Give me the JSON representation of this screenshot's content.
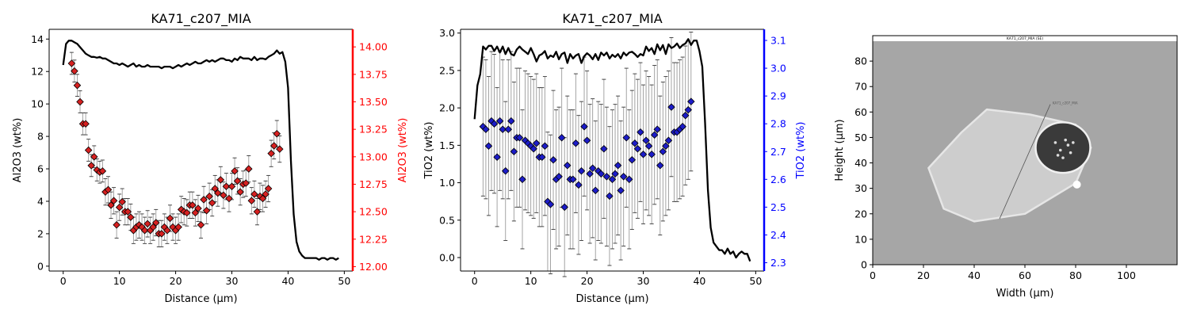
{
  "chart_data": [
    {
      "type": "scatter",
      "title": "KA71_c207_MIA",
      "xlabel": "Distance (µm)",
      "ylabel": "Al2O3 (wt%)",
      "y2label": "Al2O3 (wt%)",
      "xlim": [
        -2.5,
        51.5
      ],
      "ylim": [
        -0.3,
        14.6
      ],
      "y2lim": [
        11.96,
        14.16
      ],
      "xticks": [
        "0",
        "10",
        "20",
        "30",
        "40",
        "50"
      ],
      "yticks": [
        "0",
        "2",
        "4",
        "6",
        "8",
        "10",
        "12",
        "14"
      ],
      "y2ticks": [
        "12.00",
        "12.25",
        "12.50",
        "12.75",
        "13.00",
        "13.25",
        "13.50",
        "13.75",
        "14.00"
      ],
      "line_color": "#000000",
      "marker_color": "#d62020",
      "right_axis_color": "#ff0000",
      "line": {
        "name": "",
        "x": [
          0,
          0.5,
          1,
          1.5,
          2,
          2.5,
          3,
          3.5,
          4,
          4.5,
          5,
          5.5,
          6,
          6.5,
          7,
          7.5,
          8,
          8.5,
          9,
          9.5,
          10,
          10.5,
          11,
          11.5,
          12,
          12.5,
          13,
          13.5,
          14,
          14.5,
          15,
          15.5,
          16,
          16.5,
          17,
          17.5,
          18,
          18.5,
          19,
          19.5,
          20,
          20.5,
          21,
          21.5,
          22,
          22.5,
          23,
          23.5,
          24,
          24.5,
          25,
          25.5,
          26,
          26.5,
          27,
          27.5,
          28,
          28.5,
          29,
          29.5,
          30,
          30.5,
          31,
          31.5,
          32,
          32.5,
          33,
          33.5,
          34,
          34.5,
          35,
          35.5,
          36,
          36.5,
          37,
          37.5,
          38,
          38.5,
          39,
          39.5,
          40,
          40.5,
          41,
          41.5,
          42,
          42.5,
          43,
          43.5,
          44,
          44.5,
          45,
          45.5,
          46,
          46.5,
          47,
          47.5,
          48,
          48.5,
          49
        ],
        "y": [
          12.4,
          13.7,
          13.9,
          13.9,
          13.8,
          13.7,
          13.5,
          13.3,
          13.1,
          13.0,
          12.9,
          12.9,
          12.85,
          12.9,
          12.8,
          12.8,
          12.7,
          12.6,
          12.5,
          12.5,
          12.4,
          12.5,
          12.4,
          12.3,
          12.4,
          12.5,
          12.3,
          12.4,
          12.3,
          12.3,
          12.4,
          12.3,
          12.3,
          12.3,
          12.3,
          12.2,
          12.3,
          12.3,
          12.3,
          12.2,
          12.3,
          12.4,
          12.3,
          12.4,
          12.5,
          12.4,
          12.5,
          12.6,
          12.5,
          12.5,
          12.6,
          12.7,
          12.6,
          12.7,
          12.6,
          12.7,
          12.8,
          12.8,
          12.7,
          12.7,
          12.6,
          12.8,
          12.7,
          12.9,
          12.8,
          12.8,
          12.8,
          12.7,
          12.9,
          12.7,
          12.8,
          12.8,
          12.75,
          12.9,
          13.0,
          13.1,
          13.3,
          13.1,
          13.2,
          12.6,
          11.0,
          6.5,
          3.2,
          1.5,
          0.9,
          0.65,
          0.5,
          0.5,
          0.5,
          0.5,
          0.5,
          0.4,
          0.5,
          0.5,
          0.4,
          0.5,
          0.5,
          0.4,
          0.5
        ]
      },
      "points": {
        "x": [
          1.5,
          2,
          2.5,
          3,
          3.5,
          4,
          4.5,
          5,
          5.5,
          6,
          6.5,
          7,
          7.5,
          8,
          8.5,
          9,
          9.5,
          10,
          10.5,
          11,
          11.5,
          12,
          12.5,
          13,
          13.5,
          14,
          14.5,
          15,
          15.5,
          16,
          16.5,
          17,
          17.5,
          18,
          18.5,
          19,
          19.5,
          20,
          20.5,
          21,
          21.5,
          22,
          22.5,
          23,
          23.5,
          24,
          24.5,
          25,
          25.5,
          26,
          26.5,
          27,
          27.5,
          28,
          28.5,
          29,
          29.5,
          30,
          30.5,
          31,
          31.5,
          32,
          32.5,
          33,
          33.5,
          34,
          34.5,
          35,
          35.5,
          36,
          36.5,
          37,
          37.5,
          38,
          38.5
        ],
        "y": [
          13.85,
          13.78,
          13.65,
          13.5,
          13.3,
          13.3,
          13.06,
          12.92,
          13.0,
          12.88,
          12.86,
          12.87,
          12.68,
          12.7,
          12.56,
          12.6,
          12.38,
          12.54,
          12.59,
          12.5,
          12.5,
          12.45,
          12.33,
          12.36,
          12.38,
          12.36,
          12.33,
          12.39,
          12.33,
          12.36,
          12.4,
          12.3,
          12.3,
          12.36,
          12.33,
          12.44,
          12.36,
          12.33,
          12.36,
          12.52,
          12.5,
          12.49,
          12.56,
          12.56,
          12.49,
          12.53,
          12.38,
          12.61,
          12.51,
          12.64,
          12.58,
          12.71,
          12.67,
          12.79,
          12.65,
          12.73,
          12.62,
          12.73,
          12.87,
          12.78,
          12.68,
          12.75,
          12.76,
          12.89,
          12.6,
          12.66,
          12.5,
          12.64,
          12.62,
          12.66,
          12.71,
          13.03,
          13.1,
          13.21,
          13.07
        ],
        "err": [
          0.1,
          0.1,
          0.1,
          0.1,
          0.1,
          0.1,
          0.1,
          0.1,
          0.1,
          0.1,
          0.1,
          0.1,
          0.12,
          0.12,
          0.12,
          0.12,
          0.12,
          0.12,
          0.12,
          0.12,
          0.12,
          0.12,
          0.12,
          0.12,
          0.12,
          0.12,
          0.12,
          0.12,
          0.12,
          0.12,
          0.12,
          0.12,
          0.12,
          0.12,
          0.12,
          0.12,
          0.12,
          0.12,
          0.12,
          0.12,
          0.12,
          0.12,
          0.12,
          0.12,
          0.12,
          0.12,
          0.12,
          0.12,
          0.12,
          0.12,
          0.12,
          0.12,
          0.12,
          0.12,
          0.12,
          0.12,
          0.12,
          0.12,
          0.12,
          0.12,
          0.12,
          0.12,
          0.12,
          0.12,
          0.12,
          0.12,
          0.12,
          0.12,
          0.12,
          0.12,
          0.12,
          0.12,
          0.12,
          0.12,
          0.12
        ]
      }
    },
    {
      "type": "scatter",
      "title": "KA71_c207_MIA",
      "xlabel": "Distance (µm)",
      "ylabel": "TiO2 (wt%)",
      "y2label": "TiO2 (wt%)",
      "xlim": [
        -2.5,
        51.5
      ],
      "ylim": [
        -0.18,
        3.05
      ],
      "y2lim": [
        2.27,
        3.14
      ],
      "xticks": [
        "0",
        "10",
        "20",
        "30",
        "40",
        "50"
      ],
      "yticks": [
        "0.0",
        "0.5",
        "1.0",
        "1.5",
        "2.0",
        "2.5",
        "3.0"
      ],
      "y2ticks": [
        "2.3",
        "2.4",
        "2.5",
        "2.6",
        "2.7",
        "2.8",
        "2.9",
        "3.0",
        "3.1"
      ],
      "line_color": "#000000",
      "marker_color": "#1c1cc8",
      "right_axis_color": "#0000ff",
      "line": {
        "name": "",
        "x": [
          0,
          0.5,
          1,
          1.5,
          2,
          2.5,
          3,
          3.5,
          4,
          4.5,
          5,
          5.5,
          6,
          6.5,
          7,
          7.5,
          8,
          8.5,
          9,
          9.5,
          10,
          10.5,
          11,
          11.5,
          12,
          12.5,
          13,
          13.5,
          14,
          14.5,
          15,
          15.5,
          16,
          16.5,
          17,
          17.5,
          18,
          18.5,
          19,
          19.5,
          20,
          20.5,
          21,
          21.5,
          22,
          22.5,
          23,
          23.5,
          24,
          24.5,
          25,
          25.5,
          26,
          26.5,
          27,
          27.5,
          28,
          28.5,
          29,
          29.5,
          30,
          30.5,
          31,
          31.5,
          32,
          32.5,
          33,
          33.5,
          34,
          34.5,
          35,
          35.5,
          36,
          36.5,
          37,
          37.5,
          38,
          38.5,
          39,
          39.5,
          40,
          40.5,
          41,
          41.5,
          42,
          42.5,
          43,
          43.5,
          44,
          44.5,
          45,
          45.5,
          46,
          46.5,
          47,
          47.5,
          48,
          48.5,
          49
        ],
        "y": [
          1.85,
          2.3,
          2.45,
          2.82,
          2.78,
          2.83,
          2.83,
          2.76,
          2.82,
          2.74,
          2.82,
          2.72,
          2.8,
          2.72,
          2.7,
          2.78,
          2.82,
          2.78,
          2.75,
          2.72,
          2.8,
          2.72,
          2.62,
          2.7,
          2.72,
          2.76,
          2.66,
          2.7,
          2.68,
          2.75,
          2.65,
          2.72,
          2.74,
          2.6,
          2.72,
          2.66,
          2.7,
          2.72,
          2.6,
          2.69,
          2.73,
          2.7,
          2.65,
          2.72,
          2.64,
          2.74,
          2.7,
          2.74,
          2.66,
          2.71,
          2.68,
          2.72,
          2.66,
          2.74,
          2.7,
          2.74,
          2.75,
          2.72,
          2.68,
          2.72,
          2.7,
          2.82,
          2.76,
          2.8,
          2.72,
          2.85,
          2.77,
          2.84,
          2.72,
          2.85,
          2.8,
          2.82,
          2.86,
          2.8,
          2.84,
          2.86,
          2.92,
          2.84,
          2.9,
          2.9,
          2.76,
          2.55,
          1.8,
          0.9,
          0.4,
          0.2,
          0.15,
          0.1,
          0.1,
          0.05,
          0.12,
          0.05,
          0.08,
          0.0,
          0.05,
          0.08,
          0.05,
          0.05,
          -0.05
        ]
      },
      "points": {
        "x": [
          1.5,
          2,
          2.5,
          3,
          3.5,
          4,
          4.5,
          5,
          5.5,
          6,
          6.5,
          7,
          7.5,
          8,
          8.5,
          9,
          9.5,
          10,
          10.5,
          11,
          11.5,
          12,
          12.5,
          13,
          13.5,
          14,
          14.5,
          15,
          15.5,
          16,
          16.5,
          17,
          17.5,
          18,
          18.5,
          19,
          19.5,
          20,
          20.5,
          21,
          21.5,
          22,
          22.5,
          23,
          23.5,
          24,
          24.5,
          25,
          25.5,
          26,
          26.5,
          27,
          27.5,
          28,
          28.5,
          29,
          29.5,
          30,
          30.5,
          31,
          31.5,
          32,
          32.5,
          33,
          33.5,
          34,
          34.5,
          35,
          35.5,
          36,
          36.5,
          37,
          37.5,
          38,
          38.5
        ],
        "y": [
          2.79,
          2.78,
          2.72,
          2.81,
          2.8,
          2.68,
          2.81,
          2.78,
          2.63,
          2.78,
          2.81,
          2.7,
          2.75,
          2.75,
          2.6,
          2.74,
          2.73,
          2.72,
          2.71,
          2.73,
          2.68,
          2.68,
          2.72,
          2.52,
          2.51,
          2.67,
          2.6,
          2.61,
          2.75,
          2.5,
          2.65,
          2.6,
          2.6,
          2.73,
          2.58,
          2.63,
          2.79,
          2.74,
          2.62,
          2.64,
          2.56,
          2.63,
          2.62,
          2.71,
          2.61,
          2.54,
          2.6,
          2.62,
          2.65,
          2.56,
          2.61,
          2.75,
          2.6,
          2.67,
          2.73,
          2.71,
          2.77,
          2.69,
          2.74,
          2.72,
          2.69,
          2.76,
          2.78,
          2.65,
          2.7,
          2.72,
          2.74,
          2.86,
          2.77,
          2.77,
          2.78,
          2.79,
          2.83,
          2.85,
          2.88
        ],
        "err": [
          0.25,
          0.25,
          0.25,
          0.25,
          0.25,
          0.25,
          0.25,
          0.25,
          0.25,
          0.25,
          0.25,
          0.25,
          0.25,
          0.25,
          0.25,
          0.25,
          0.25,
          0.25,
          0.25,
          0.25,
          0.25,
          0.25,
          0.25,
          0.25,
          0.25,
          0.25,
          0.25,
          0.25,
          0.25,
          0.25,
          0.25,
          0.25,
          0.25,
          0.25,
          0.25,
          0.25,
          0.25,
          0.25,
          0.25,
          0.25,
          0.25,
          0.25,
          0.25,
          0.25,
          0.25,
          0.25,
          0.25,
          0.25,
          0.25,
          0.25,
          0.25,
          0.25,
          0.25,
          0.25,
          0.25,
          0.25,
          0.25,
          0.25,
          0.25,
          0.25,
          0.25,
          0.25,
          0.25,
          0.25,
          0.25,
          0.25,
          0.25,
          0.25,
          0.25,
          0.25,
          0.25,
          0.25,
          0.25,
          0.25,
          0.25
        ]
      }
    },
    {
      "type": "image",
      "caption": "KA71_c207_MIA (SE)",
      "inner_label": "KA71_c207_MIA",
      "xlabel": "Width (µm)",
      "ylabel": "Height (µm)",
      "xlim": [
        0,
        120
      ],
      "ylim": [
        0,
        90
      ],
      "xticks": [
        "0",
        "20",
        "40",
        "60",
        "80",
        "100"
      ],
      "yticks": [
        "0",
        "10",
        "20",
        "30",
        "40",
        "50",
        "60",
        "70",
        "80"
      ],
      "background_color": "#a6a6a6",
      "crystal_color": "#cdcdcd",
      "profile_line": {
        "x": [
          50,
          70
        ],
        "y": [
          18,
          63
        ]
      }
    }
  ]
}
